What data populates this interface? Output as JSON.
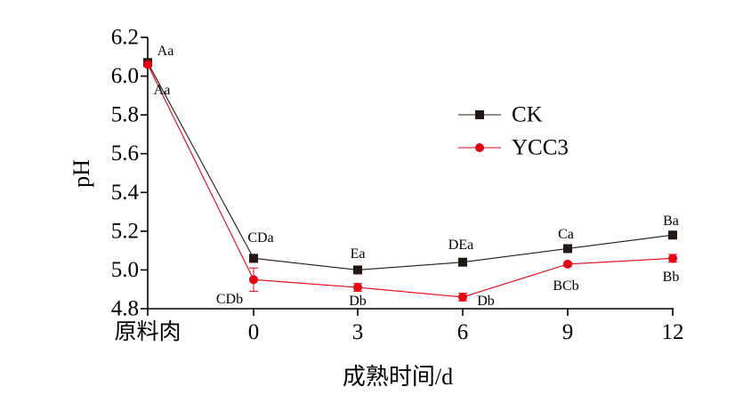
{
  "chart_data": {
    "type": "line",
    "xlabel": "成熟时间/d",
    "ylabel": "pH",
    "ylim": [
      4.8,
      6.2
    ],
    "yticks": [
      4.8,
      5.0,
      5.2,
      5.4,
      5.6,
      5.8,
      6.0,
      6.2
    ],
    "ytick_labels": [
      "4.8",
      "5.0",
      "5.2",
      "5.4",
      "5.6",
      "5.8",
      "6.0",
      "6.2"
    ],
    "categories": [
      "原料肉",
      "0",
      "3",
      "6",
      "9",
      "12"
    ],
    "grid": false,
    "legend_position": "top-right",
    "series": [
      {
        "name": "CK",
        "color": "#231815",
        "marker": "square",
        "values": [
          6.07,
          5.06,
          5.0,
          5.04,
          5.11,
          5.18
        ],
        "errors": [
          0.01,
          0.02,
          0.01,
          0.01,
          0.01,
          0.01
        ],
        "annotations": [
          "Aa",
          "CDa",
          "Ea",
          "DEa",
          "Ca",
          "Ba"
        ]
      },
      {
        "name": "YCC3",
        "color": "#e60012",
        "marker": "circle",
        "values": [
          6.06,
          4.95,
          4.91,
          4.86,
          5.03,
          5.06
        ],
        "errors": [
          0.01,
          0.06,
          0.02,
          0.02,
          0.01,
          0.02
        ],
        "annotations": [
          "Aa",
          "CDb",
          "Db",
          "Db",
          "BCb",
          "Bb"
        ]
      }
    ]
  }
}
